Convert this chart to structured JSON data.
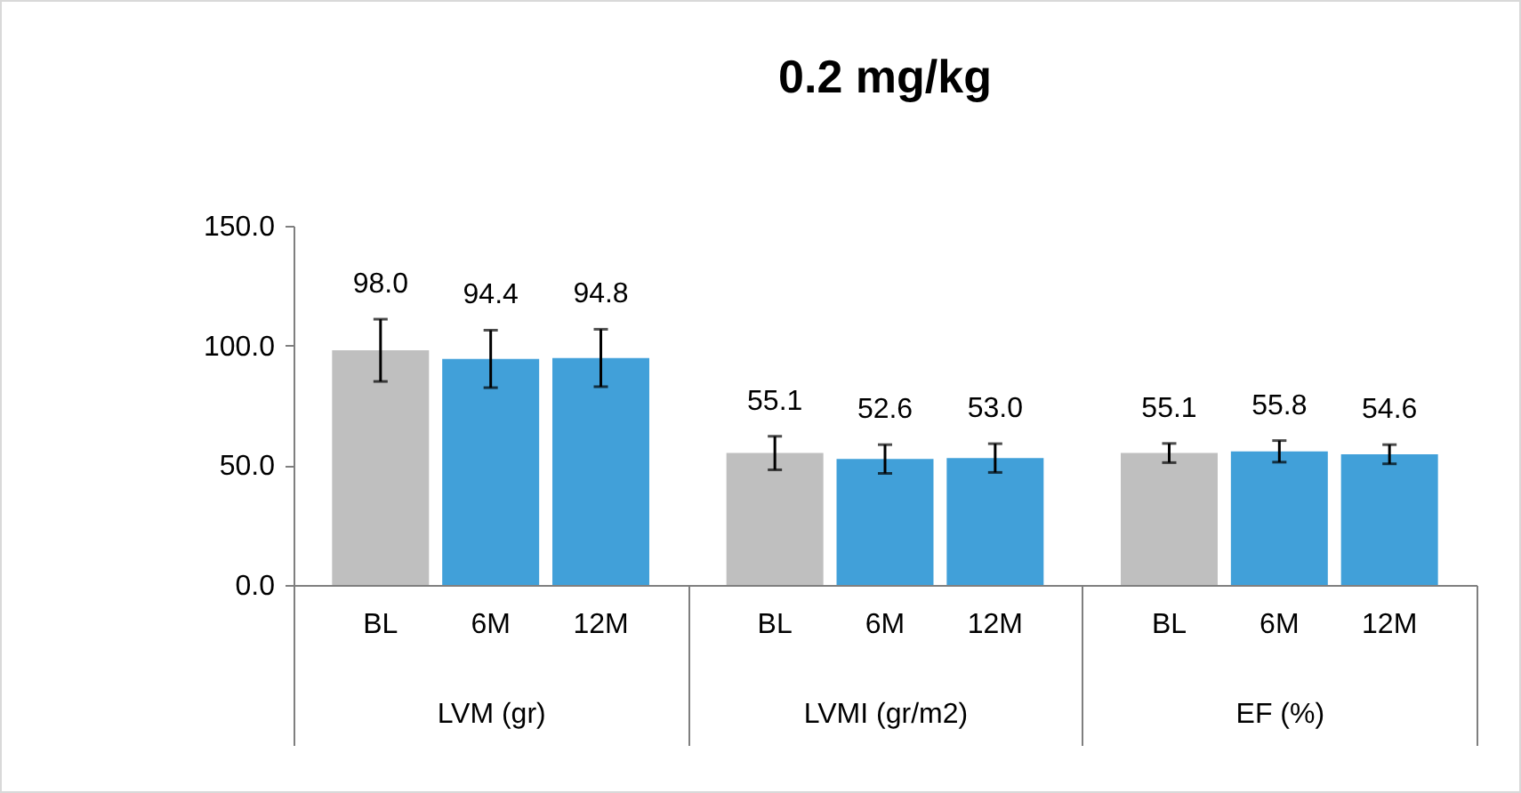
{
  "chart_data": {
    "type": "bar",
    "title": "0.2 mg/kg",
    "categories": [
      "LVM (gr)",
      "LVMI (gr/m2)",
      "EF (%)"
    ],
    "series": [
      {
        "name": "BL",
        "color": "#bfbfbf",
        "values": [
          98.0,
          55.1,
          55.1
        ],
        "errors": [
          13,
          7,
          4
        ],
        "value_labels": [
          "98.0",
          "55.1",
          "55.1"
        ]
      },
      {
        "name": "6M",
        "color": "#41a0d9",
        "values": [
          94.4,
          52.6,
          55.8
        ],
        "errors": [
          12,
          6,
          4.5
        ],
        "value_labels": [
          "94.4",
          "52.6",
          "55.8"
        ]
      },
      {
        "name": "12M",
        "color": "#41a0d9",
        "values": [
          94.8,
          53.0,
          54.6
        ],
        "errors": [
          12,
          6,
          4
        ],
        "value_labels": [
          "94.8",
          "53.0",
          "54.6"
        ]
      }
    ],
    "ylim": [
      0,
      150
    ],
    "yticks": [
      {
        "value": 0,
        "label": "0.0"
      },
      {
        "value": 50,
        "label": "50.0"
      },
      {
        "value": 100,
        "label": "100.0"
      },
      {
        "value": 150,
        "label": "150.0"
      }
    ],
    "grid": false,
    "legend": false
  }
}
